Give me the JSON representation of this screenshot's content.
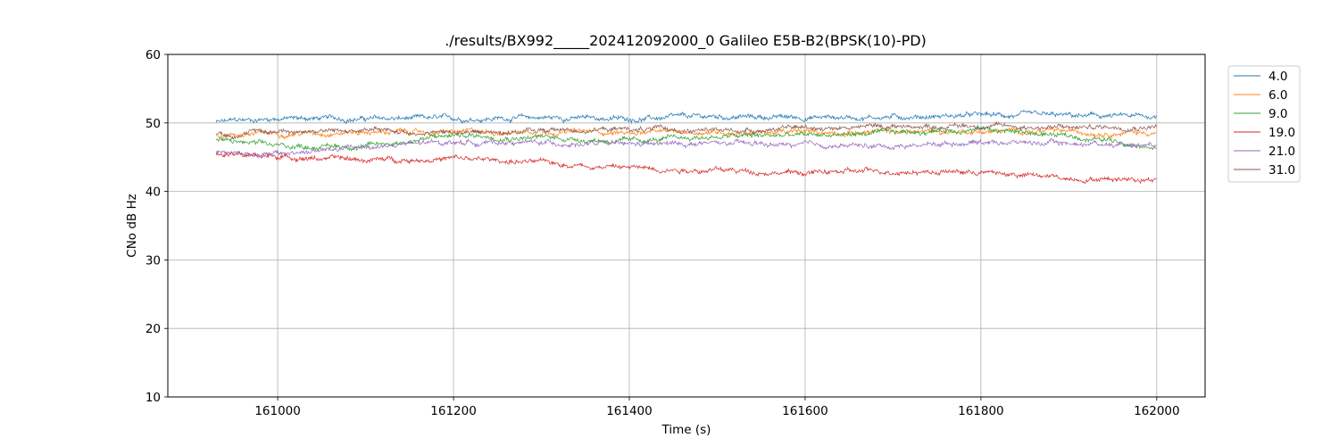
{
  "chart_data": {
    "type": "line",
    "title": "./results/BX992_____202412092000_0 Galileo E5B-B2(BPSK(10)-PD)",
    "xlabel": "Time (s)",
    "ylabel": "CNo dB Hz",
    "xlim": [
      160875,
      162055
    ],
    "ylim": [
      10,
      60
    ],
    "xticks": [
      161000,
      161200,
      161400,
      161600,
      161800,
      162000
    ],
    "yticks": [
      10,
      20,
      30,
      40,
      50,
      60
    ],
    "grid": true,
    "legend_position": "outside-top-right",
    "x_range": [
      160930,
      162000
    ],
    "series": [
      {
        "name": "4.0",
        "color": "#1f77b4",
        "x": [
          160930,
          161000,
          161100,
          161200,
          161300,
          161400,
          161500,
          161600,
          161700,
          161800,
          161900,
          162000
        ],
        "y": [
          50.1,
          50.7,
          50.6,
          50.6,
          50.8,
          50.6,
          50.9,
          50.8,
          50.9,
          51.1,
          51.0,
          50.9
        ]
      },
      {
        "name": "6.0",
        "color": "#ff7f0e",
        "x": [
          160930,
          161000,
          161100,
          161200,
          161300,
          161400,
          161500,
          161600,
          161700,
          161800,
          161900,
          162000
        ],
        "y": [
          48.3,
          48.5,
          48.7,
          48.6,
          48.8,
          48.6,
          48.7,
          48.6,
          48.7,
          48.8,
          48.7,
          48.6
        ]
      },
      {
        "name": "9.0",
        "color": "#2ca02c",
        "x": [
          160930,
          161000,
          161100,
          161200,
          161300,
          161400,
          161500,
          161600,
          161700,
          161800,
          161900,
          162000
        ],
        "y": [
          47.5,
          46.6,
          46.6,
          48.2,
          47.9,
          47.3,
          48.0,
          48.2,
          48.5,
          49.2,
          48.0,
          46.8
        ]
      },
      {
        "name": "19.0",
        "color": "#d62728",
        "x": [
          160930,
          161000,
          161100,
          161200,
          161300,
          161400,
          161500,
          161600,
          161700,
          161800,
          161900,
          162000
        ],
        "y": [
          45.4,
          45.1,
          44.6,
          44.8,
          44.2,
          43.5,
          43.1,
          42.7,
          43.0,
          42.8,
          41.9,
          41.9
        ]
      },
      {
        "name": "21.0",
        "color": "#9467bd",
        "x": [
          160930,
          161000,
          161100,
          161200,
          161300,
          161400,
          161500,
          161600,
          161700,
          161800,
          161900,
          162000
        ],
        "y": [
          45.8,
          45.4,
          46.5,
          47.2,
          47.1,
          46.8,
          47.0,
          46.7,
          46.6,
          47.3,
          47.0,
          46.9
        ]
      },
      {
        "name": "31.0",
        "color": "#8c564b",
        "x": [
          160930,
          161000,
          161100,
          161200,
          161300,
          161400,
          161500,
          161600,
          161700,
          161800,
          161900,
          162000
        ],
        "y": [
          48.3,
          48.8,
          48.9,
          48.5,
          48.9,
          49.1,
          48.8,
          49.3,
          49.5,
          49.6,
          49.3,
          49.6
        ]
      }
    ]
  }
}
